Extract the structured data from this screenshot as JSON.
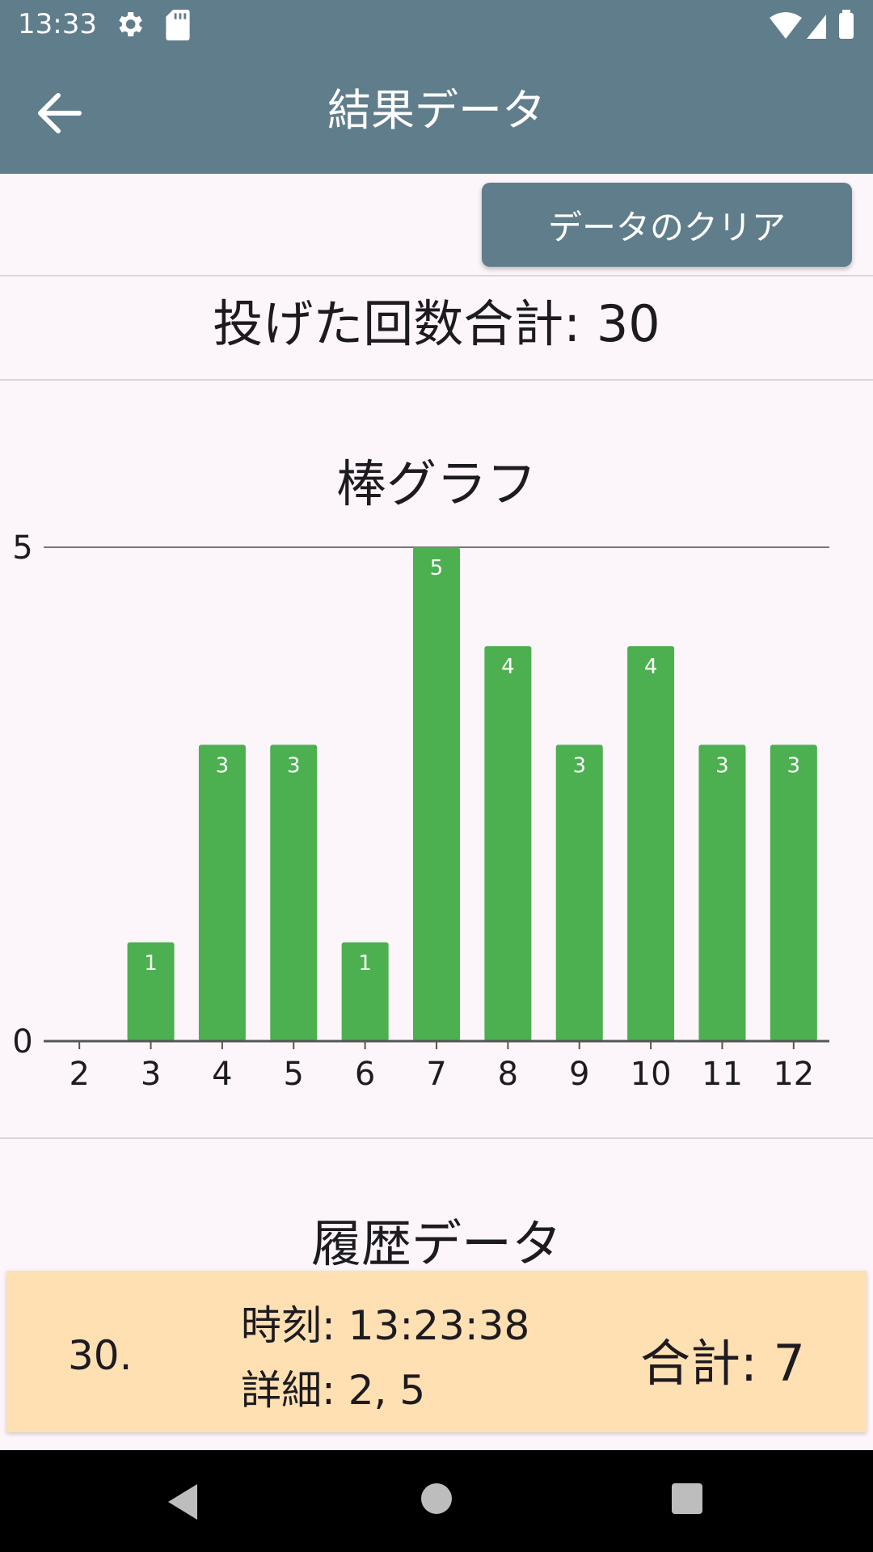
{
  "status": {
    "time": "13:33"
  },
  "app_bar": {
    "title": "結果データ"
  },
  "toolbar": {
    "clear_label": "データのクリア"
  },
  "summary": {
    "total_label": "投げた回数合計: 30"
  },
  "chart_title": "棒グラフ",
  "chart_data": {
    "type": "bar",
    "categories": [
      "2",
      "3",
      "4",
      "5",
      "6",
      "7",
      "8",
      "9",
      "10",
      "11",
      "12"
    ],
    "values": [
      0,
      1,
      3,
      3,
      1,
      5,
      4,
      3,
      4,
      3,
      3
    ],
    "ylim": [
      0,
      5
    ],
    "y_ticks": [
      "0",
      "5"
    ],
    "bar_color": "#4caf50",
    "grid": false
  },
  "history": {
    "title": "履歴データ",
    "items": [
      {
        "index": "30.",
        "time": "時刻: 13:23:38",
        "detail": "詳細: 2, 5",
        "total": "合計: 7"
      }
    ]
  },
  "colors": {
    "primary": "#607d8b",
    "card": "#ffe0b3",
    "background": "#fcf6fb"
  }
}
